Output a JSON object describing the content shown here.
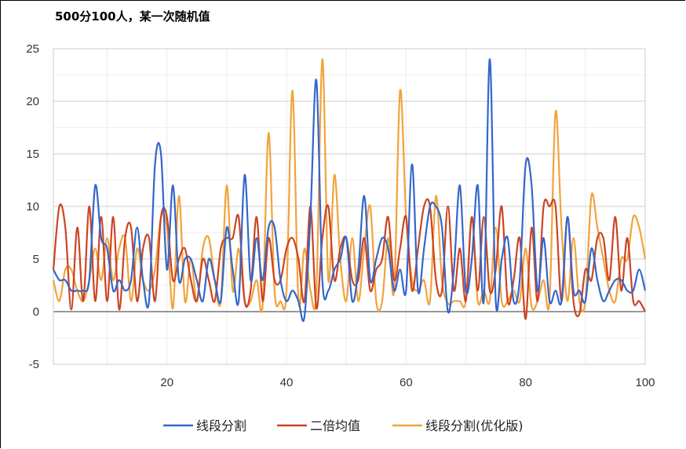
{
  "chart_data": {
    "type": "line",
    "title": "500分100人，某一次随机值",
    "xlabel": "",
    "ylabel": "",
    "xlim": [
      1,
      100
    ],
    "ylim": [
      -5,
      25
    ],
    "x_ticks": [
      "20",
      "40",
      "60",
      "80",
      "100"
    ],
    "x_tick_values": [
      20,
      40,
      60,
      80,
      100
    ],
    "y_ticks": [
      "-5",
      "0",
      "5",
      "10",
      "15",
      "20",
      "25"
    ],
    "y_tick_values": [
      -5,
      0,
      5,
      10,
      15,
      20,
      25
    ],
    "grid": true,
    "legend_position": "bottom",
    "x": [
      1,
      2,
      3,
      4,
      5,
      6,
      7,
      8,
      9,
      10,
      11,
      12,
      13,
      14,
      15,
      16,
      17,
      18,
      19,
      20,
      21,
      22,
      23,
      24,
      25,
      26,
      27,
      28,
      29,
      30,
      31,
      32,
      33,
      34,
      35,
      36,
      37,
      38,
      39,
      40,
      41,
      42,
      43,
      44,
      45,
      46,
      47,
      48,
      49,
      50,
      51,
      52,
      53,
      54,
      55,
      56,
      57,
      58,
      59,
      60,
      61,
      62,
      63,
      64,
      65,
      66,
      67,
      68,
      69,
      70,
      71,
      72,
      73,
      74,
      75,
      76,
      77,
      78,
      79,
      80,
      81,
      82,
      83,
      84,
      85,
      86,
      87,
      88,
      89,
      90,
      91,
      92,
      93,
      94,
      95,
      96,
      97,
      98,
      99,
      100
    ],
    "series": [
      {
        "name": "线段分割",
        "color": "#3366cc",
        "values": [
          4,
          3,
          3,
          2,
          2,
          2,
          3,
          12,
          7,
          6,
          2,
          3,
          2,
          3,
          8,
          3,
          1,
          14,
          15,
          4,
          12,
          3,
          5,
          5,
          3,
          1,
          5,
          3,
          1,
          8,
          4,
          1,
          13,
          3,
          7,
          3,
          8,
          8,
          3,
          1,
          2,
          1,
          -0.5,
          9,
          22,
          3,
          2,
          4,
          5,
          7,
          1,
          4,
          11,
          3,
          5,
          7,
          6,
          2,
          4,
          2,
          14,
          2,
          6,
          10,
          10,
          8,
          0,
          4,
          12,
          2,
          5,
          12,
          1,
          24,
          1,
          5,
          7,
          1,
          3,
          14,
          12,
          2,
          7,
          1,
          2,
          1,
          9,
          2,
          2,
          1,
          6,
          3,
          1,
          2,
          3,
          3,
          2,
          2,
          4,
          2
        ]
      },
      {
        "name": "二倍均值",
        "color": "#cc4422",
        "values": [
          4,
          10,
          8,
          0.2,
          8,
          1,
          10,
          1,
          9,
          1,
          9,
          0.2,
          7,
          8,
          1,
          6,
          7,
          1,
          9,
          9,
          3,
          5,
          6,
          3,
          1,
          5,
          3,
          1,
          6,
          7,
          7,
          9,
          1,
          2,
          9,
          1,
          7,
          3,
          3,
          6,
          7,
          5,
          1,
          10,
          0.3,
          7,
          10,
          3,
          6,
          7,
          3,
          3,
          7,
          2,
          4,
          5,
          9,
          3,
          6,
          9,
          2,
          6,
          10,
          10,
          3,
          2,
          10,
          2,
          6,
          1,
          9,
          2,
          9,
          2,
          4,
          10,
          1,
          3,
          7,
          -0.7,
          8,
          1,
          10,
          10,
          10,
          1,
          9,
          1,
          -0.2,
          4,
          3,
          7,
          7,
          3,
          9,
          2,
          7,
          1,
          1,
          0
        ]
      },
      {
        "name": "线段分割(优化版)",
        "color": "#f2a33a",
        "values": [
          3,
          1,
          4,
          4,
          2,
          1,
          3,
          6,
          3,
          7,
          3,
          6,
          7,
          1,
          6,
          3,
          2,
          4,
          9,
          8,
          0.3,
          11,
          1,
          5,
          1,
          6,
          7,
          3,
          1,
          12,
          2,
          6,
          1,
          1,
          3,
          0.6,
          17,
          2,
          1,
          2,
          21,
          1,
          6,
          2,
          2,
          24,
          3,
          13,
          5,
          1,
          7,
          1,
          6,
          10,
          1,
          1,
          7,
          2,
          21,
          9,
          3,
          2,
          3,
          1,
          11,
          3,
          0.8,
          1,
          1,
          1,
          9,
          1,
          2,
          1,
          8,
          1,
          1,
          2,
          1,
          6,
          0.5,
          1,
          3,
          1,
          19,
          8,
          1,
          7,
          1,
          1,
          11,
          8,
          5,
          2,
          1,
          5,
          5,
          9,
          8,
          5
        ]
      }
    ]
  }
}
